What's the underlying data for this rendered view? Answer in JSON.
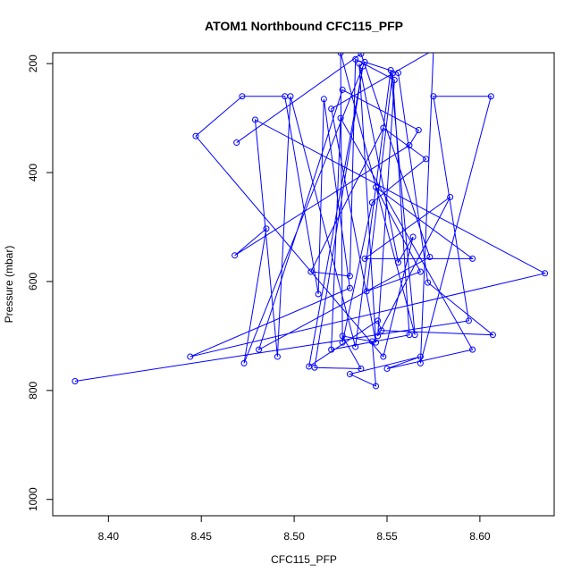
{
  "chart_data": {
    "type": "line",
    "title": "ATOM1 Northbound CFC115_PFP",
    "xlabel": "CFC115_PFP",
    "ylabel": "Pressure (mbar)",
    "xlim": [
      8.37,
      8.64
    ],
    "ylim": [
      1030,
      180
    ],
    "y_reversed": true,
    "xticks": [
      "8.40",
      "8.45",
      "8.50",
      "8.55",
      "8.60"
    ],
    "yticks": [
      "200",
      "400",
      "600",
      "800",
      "1000"
    ],
    "grid": false,
    "legend": "none",
    "series": [
      {
        "color": "#0000ff",
        "points": [
          [
            8.382,
            783
          ],
          [
            8.594,
            672
          ],
          [
            8.575,
            260
          ],
          [
            8.606,
            260
          ],
          [
            8.568,
            750
          ],
          [
            8.575,
            175
          ],
          [
            8.52,
            283
          ],
          [
            8.544,
            712
          ],
          [
            8.535,
            200
          ],
          [
            8.556,
            565
          ],
          [
            8.564,
            518
          ],
          [
            8.548,
            738
          ],
          [
            8.447,
            333
          ],
          [
            8.472,
            260
          ],
          [
            8.495,
            260
          ],
          [
            8.513,
            623
          ],
          [
            8.516,
            265
          ],
          [
            8.53,
            612
          ],
          [
            8.444,
            738
          ],
          [
            8.635,
            585
          ],
          [
            8.479,
            303
          ],
          [
            8.491,
            738
          ],
          [
            8.498,
            260
          ],
          [
            8.533,
            720
          ],
          [
            8.552,
            212
          ],
          [
            8.565,
            698
          ],
          [
            8.525,
            180
          ],
          [
            8.526,
            712
          ],
          [
            8.542,
            455
          ],
          [
            8.571,
            375
          ],
          [
            8.548,
            318
          ],
          [
            8.509,
            582
          ],
          [
            8.53,
            590
          ],
          [
            8.533,
            192
          ],
          [
            8.554,
            230
          ],
          [
            8.545,
            700
          ],
          [
            8.584,
            445
          ],
          [
            8.538,
            558
          ],
          [
            8.596,
            558
          ],
          [
            8.544,
            427
          ],
          [
            8.568,
            582
          ],
          [
            8.539,
            618
          ],
          [
            8.553,
            218
          ],
          [
            8.562,
            698
          ],
          [
            8.52,
            725
          ],
          [
            8.525,
            300
          ],
          [
            8.596,
            725
          ],
          [
            8.55,
            760
          ],
          [
            8.568,
            738
          ],
          [
            8.53,
            770
          ],
          [
            8.544,
            792
          ],
          [
            8.542,
            710
          ],
          [
            8.526,
            700
          ],
          [
            8.536,
            760
          ],
          [
            8.511,
            758
          ],
          [
            8.537,
            205
          ],
          [
            8.508,
            756
          ],
          [
            8.545,
            672
          ],
          [
            8.547,
            690
          ],
          [
            8.607,
            698
          ],
          [
            8.572,
            602
          ],
          [
            8.556,
            217
          ],
          [
            8.538,
            197
          ],
          [
            8.473,
            750
          ],
          [
            8.485,
            503
          ],
          [
            8.468,
            552
          ],
          [
            8.562,
            350
          ],
          [
            8.567,
            322
          ],
          [
            8.526,
            248
          ],
          [
            8.481,
            725
          ],
          [
            8.573,
            555
          ],
          [
            8.536,
            182
          ],
          [
            8.469,
            345
          ]
        ]
      }
    ]
  }
}
